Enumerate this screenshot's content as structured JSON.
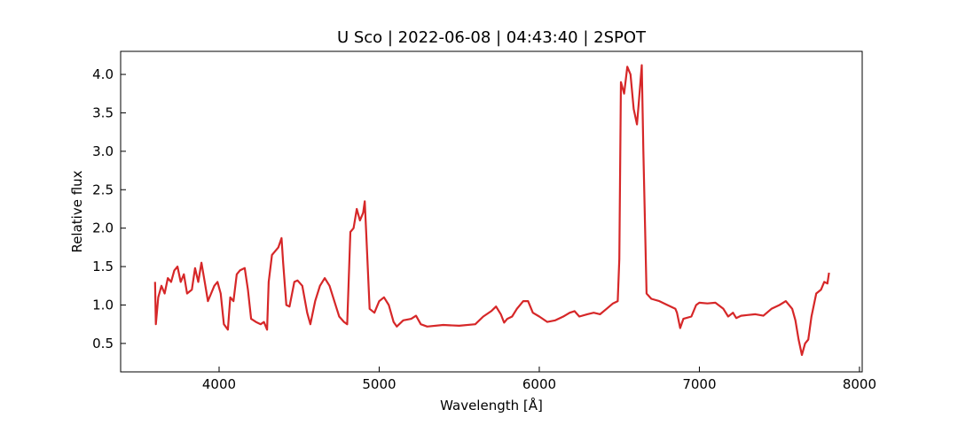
{
  "chart_data": {
    "type": "line",
    "title": "U Sco | 2022-06-08 | 04:43:40 | 2SPOT",
    "xlabel": "Wavelength [Å]",
    "ylabel": "Relative flux",
    "xlim": [
      3385,
      8017
    ],
    "ylim": [
      0.13,
      4.3
    ],
    "xticks": [
      4000,
      5000,
      6000,
      7000,
      8000
    ],
    "yticks": [
      0.5,
      {
        "value": 1.0,
        "label": "1.0"
      },
      1.5,
      {
        "value": 2.0,
        "label": "2.0"
      },
      2.5,
      {
        "value": 3.0,
        "label": "3.0"
      },
      3.5,
      {
        "value": 4.0,
        "label": "4.0"
      }
    ],
    "x": [
      3600,
      3605,
      3620,
      3640,
      3660,
      3680,
      3700,
      3720,
      3740,
      3760,
      3780,
      3800,
      3830,
      3850,
      3870,
      3890,
      3910,
      3930,
      3950,
      3970,
      3990,
      4010,
      4030,
      4055,
      4070,
      4090,
      4110,
      4130,
      4160,
      4180,
      4200,
      4230,
      4260,
      4280,
      4300,
      4310,
      4330,
      4350,
      4370,
      4390,
      4400,
      4420,
      4440,
      4470,
      4490,
      4520,
      4550,
      4570,
      4600,
      4630,
      4660,
      4690,
      4720,
      4750,
      4780,
      4800,
      4820,
      4840,
      4860,
      4880,
      4900,
      4910,
      4920,
      4940,
      4970,
      5000,
      5030,
      5060,
      5090,
      5110,
      5150,
      5200,
      5230,
      5260,
      5300,
      5400,
      5500,
      5600,
      5650,
      5700,
      5730,
      5760,
      5780,
      5800,
      5830,
      5860,
      5900,
      5930,
      5960,
      6000,
      6050,
      6100,
      6150,
      6190,
      6220,
      6250,
      6300,
      6340,
      6380,
      6420,
      6460,
      6490,
      6500,
      6510,
      6530,
      6550,
      6570,
      6590,
      6610,
      6620,
      6640,
      6650,
      6670,
      6700,
      6750,
      6800,
      6850,
      6860,
      6880,
      6900,
      6950,
      6980,
      7000,
      7050,
      7100,
      7150,
      7180,
      7210,
      7230,
      7260,
      7300,
      7350,
      7400,
      7450,
      7500,
      7540,
      7580,
      7600,
      7620,
      7640,
      7660,
      7680,
      7700,
      7730,
      7760,
      7780,
      7800,
      7810
    ],
    "series": [
      {
        "color": "#d62728",
        "values": [
          1.3,
          0.75,
          1.1,
          1.25,
          1.15,
          1.35,
          1.3,
          1.45,
          1.5,
          1.3,
          1.4,
          1.15,
          1.2,
          1.48,
          1.3,
          1.55,
          1.3,
          1.05,
          1.15,
          1.25,
          1.3,
          1.15,
          0.75,
          0.68,
          1.1,
          1.05,
          1.4,
          1.45,
          1.48,
          1.2,
          0.82,
          0.78,
          0.75,
          0.78,
          0.68,
          1.3,
          1.65,
          1.7,
          1.75,
          1.87,
          1.55,
          1.0,
          0.98,
          1.3,
          1.32,
          1.25,
          0.9,
          0.75,
          1.05,
          1.25,
          1.35,
          1.25,
          1.05,
          0.85,
          0.78,
          0.75,
          1.95,
          2.0,
          2.25,
          2.1,
          2.2,
          2.35,
          1.9,
          0.95,
          0.9,
          1.05,
          1.1,
          1.0,
          0.78,
          0.72,
          0.8,
          0.82,
          0.86,
          0.75,
          0.72,
          0.74,
          0.73,
          0.75,
          0.85,
          0.92,
          0.98,
          0.88,
          0.77,
          0.82,
          0.85,
          0.95,
          1.05,
          1.05,
          0.9,
          0.85,
          0.78,
          0.8,
          0.85,
          0.9,
          0.92,
          0.85,
          0.88,
          0.9,
          0.88,
          0.95,
          1.02,
          1.05,
          1.6,
          3.9,
          3.75,
          4.1,
          4.0,
          3.55,
          3.35,
          3.6,
          4.12,
          3.0,
          1.15,
          1.08,
          1.05,
          1.0,
          0.95,
          0.9,
          0.7,
          0.82,
          0.85,
          1.0,
          1.03,
          1.02,
          1.03,
          0.95,
          0.85,
          0.9,
          0.83,
          0.86,
          0.87,
          0.88,
          0.86,
          0.95,
          1.0,
          1.05,
          0.95,
          0.8,
          0.55,
          0.35,
          0.5,
          0.55,
          0.85,
          1.15,
          1.2,
          1.3,
          1.28,
          1.42
        ]
      }
    ]
  }
}
